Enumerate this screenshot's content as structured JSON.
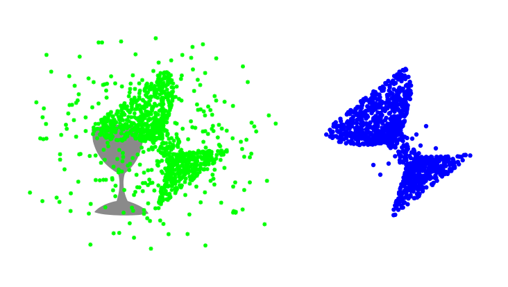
{
  "canvas": {
    "background": "#ffffff"
  },
  "left_view": {
    "silhouette": {
      "shape": "goblet",
      "color": "#8a8a8a"
    },
    "dense_cloud": {
      "shape": "goblet",
      "color": "#00ff00",
      "marker": "asterisk",
      "placement": "rotated-and-offset"
    },
    "noise": {
      "color": "#00ff00",
      "marker": "asterisk",
      "distribution": "scattered"
    }
  },
  "right_view": {
    "cloud": {
      "shape": "goblet",
      "color": "#0000ff",
      "marker": "dot",
      "placement": "rotated"
    }
  }
}
